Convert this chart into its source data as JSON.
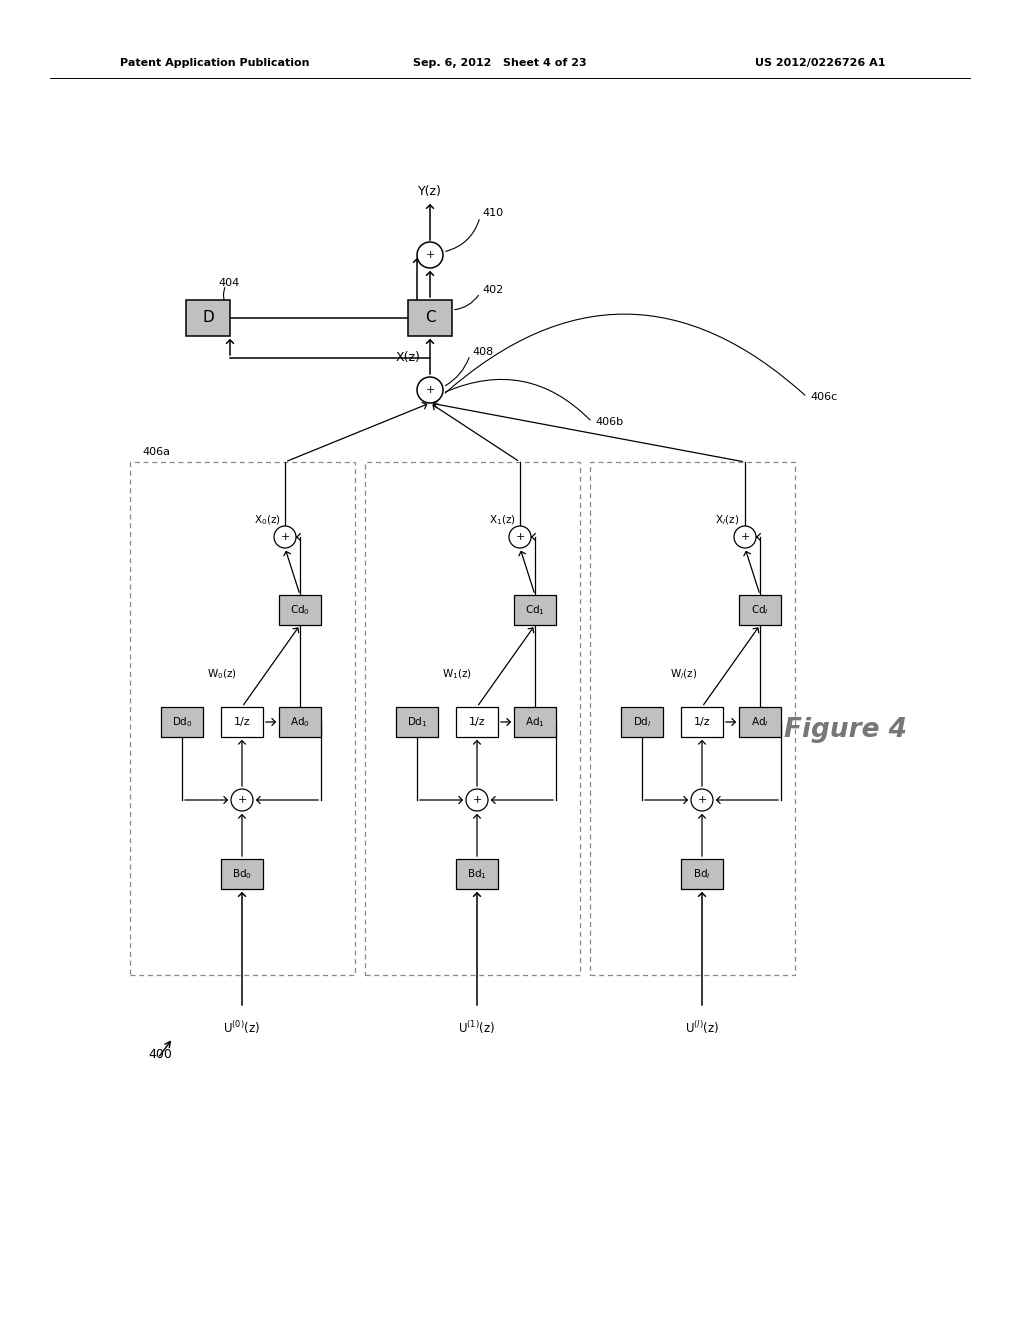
{
  "header_left": "Patent Application Publication",
  "header_center": "Sep. 6, 2012   Sheet 4 of 23",
  "header_right": "US 2012/0226726 A1",
  "figure_label": "Figure 4",
  "bg_color": "#ffffff",
  "box_fill_gray": "#c0c0c0",
  "box_fill_white": "#ffffff",
  "line_color": "#000000",
  "label_410": "410",
  "label_402": "402",
  "label_404": "404",
  "label_408": "408",
  "label_406a": "406a",
  "label_406b": "406b",
  "label_406c": "406c",
  "label_400": "400",
  "label_Yz": "Y(z)",
  "label_Xz": "X(z)",
  "subs": [
    "0",
    "1",
    "l"
  ]
}
